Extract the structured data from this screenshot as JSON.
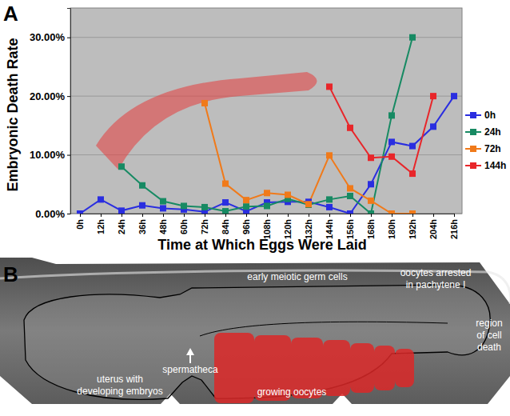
{
  "chart_data": {
    "type": "line",
    "title": "A",
    "x_label": "Time at Which Eggs Were Laid",
    "y_label": "Embryonic Death Rate",
    "categories": [
      "0h",
      "12h",
      "24h",
      "36h",
      "48h",
      "60h",
      "72h",
      "84h",
      "96h",
      "108h",
      "120h",
      "132h",
      "144h",
      "156h",
      "168h",
      "180h",
      "192h",
      "204h",
      "216h"
    ],
    "series": [
      {
        "name": "0h",
        "color": "#2a2ee0",
        "values": [
          0,
          2.4,
          0.5,
          1.4,
          0.9,
          0.7,
          0.3,
          1.9,
          0.4,
          1.9,
          2.0,
          2.0,
          1.1,
          0,
          5.0,
          12.2,
          11.5,
          14.8,
          20.0
        ]
      },
      {
        "name": "24h",
        "color": "#178a63",
        "values": [
          null,
          null,
          8.0,
          4.8,
          2.1,
          1.3,
          1.1,
          0.4,
          1.2,
          1.3,
          2.5,
          1.5,
          2.4,
          3.0,
          0,
          16.7,
          30.0,
          null,
          null
        ]
      },
      {
        "name": "72h",
        "color": "#f07a1a",
        "values": [
          null,
          null,
          null,
          null,
          null,
          null,
          18.8,
          5.1,
          2.3,
          3.5,
          3.2,
          1.6,
          9.9,
          4.3,
          2.2,
          0,
          0,
          null,
          null
        ]
      },
      {
        "name": "144h",
        "color": "#e8262a",
        "values": [
          null,
          null,
          null,
          null,
          null,
          null,
          null,
          null,
          null,
          null,
          null,
          null,
          21.6,
          14.6,
          9.5,
          9.7,
          6.8,
          20.0,
          null
        ]
      }
    ],
    "ylim": [
      0,
      35
    ],
    "yticks": [
      {
        "value": 0,
        "label": "0.00%"
      },
      {
        "value": 10,
        "label": "10.00%"
      },
      {
        "value": 20,
        "label": "20.00%"
      },
      {
        "value": 30,
        "label": "30.00%"
      }
    ],
    "grid": true,
    "legend": "right",
    "marker": "square"
  },
  "image_panel": {
    "label": "B",
    "annotations": [
      {
        "lines": [
          "early meiotic germ cells"
        ]
      },
      {
        "lines": [
          "oocytes arrested",
          "in pachytene I"
        ]
      },
      {
        "lines": [
          "region",
          "of cell",
          "death"
        ]
      },
      {
        "lines": [
          "uterus with",
          "developing embryos"
        ]
      },
      {
        "lines": [
          "spermatheca"
        ]
      },
      {
        "lines": [
          "growing oocytes"
        ]
      }
    ]
  }
}
